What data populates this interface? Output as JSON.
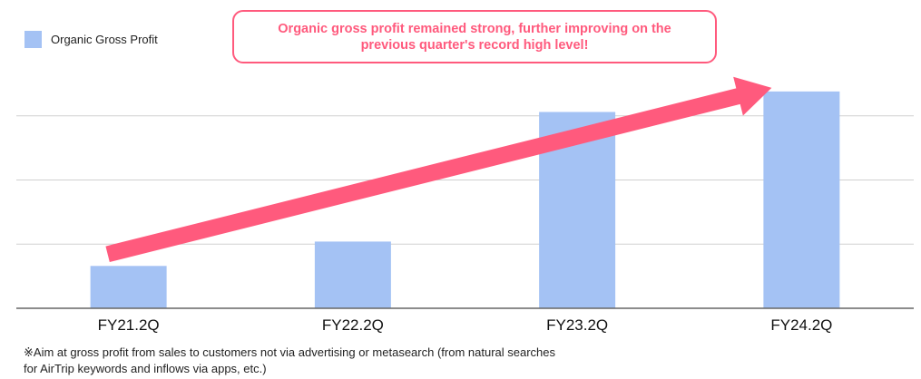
{
  "legend": {
    "label": "Organic Gross Profit"
  },
  "callout": {
    "text": "Organic gross profit remained strong, further improving on the previous quarter's record high level!"
  },
  "footnote": {
    "text": "※Aim at gross profit from sales to customers not via advertising or metasearch (from natural searches for AirTrip keywords and inflows via apps, etc.)"
  },
  "colors": {
    "bar": "#a4c2f4",
    "accent": "#ff5a7d",
    "grid": "#d0d0d0",
    "axis": "#666666"
  },
  "chart_data": {
    "type": "bar",
    "categories": [
      "FY21.2Q",
      "FY22.2Q",
      "FY23.2Q",
      "FY24.2Q"
    ],
    "series": [
      {
        "name": "Organic Gross Profit",
        "values": [
          0.33,
          0.52,
          1.53,
          1.69
        ]
      }
    ],
    "ylim": [
      0,
      2
    ],
    "grid": true,
    "legend_position": "top-left",
    "title": "",
    "xlabel": "",
    "ylabel": ""
  }
}
